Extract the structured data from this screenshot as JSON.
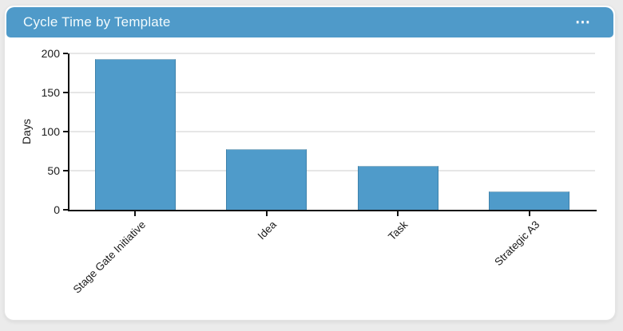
{
  "header": {
    "title": "Cycle Time by Template",
    "more_icon": "⋯"
  },
  "colors": {
    "header_bg": "#4f9ac9",
    "header_text": "#f2fbfd",
    "bar_fill": "#4f9bca",
    "bar_edge": "#3e82ab",
    "card_bg": "#ffffff",
    "page_bg": "#ebebeb",
    "gridline": "#e6e6e6",
    "axis": "#111111"
  },
  "chart_data": {
    "type": "bar",
    "categories": [
      "Stage Gate Initiative",
      "Idea",
      "Task",
      "Strategic A3"
    ],
    "values": [
      193,
      78,
      56,
      23
    ],
    "title": "Cycle Time by Template",
    "xlabel": "",
    "ylabel": "Days",
    "ylim": [
      0,
      200
    ],
    "yticks": [
      0,
      50,
      100,
      150,
      200
    ],
    "x_tick_rotation_deg": 45,
    "grid": "horizontal",
    "legend": "none",
    "bar_color": "#4f9bca"
  }
}
